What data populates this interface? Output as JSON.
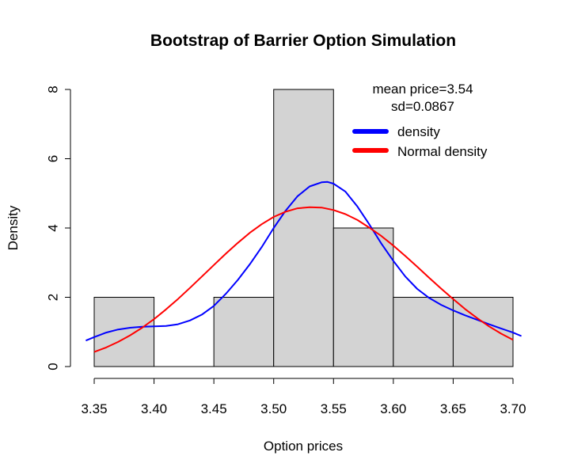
{
  "chart_data": {
    "type": "histogram",
    "title": "Bootstrap of Barrier Option Simulation",
    "xlabel": "Option prices",
    "ylabel": "Density",
    "xlim": [
      3.35,
      3.7
    ],
    "ylim": [
      0,
      8
    ],
    "x_ticks": [
      "3.35",
      "3.40",
      "3.45",
      "3.50",
      "3.55",
      "3.60",
      "3.65",
      "3.70"
    ],
    "y_ticks": [
      "0",
      "2",
      "4",
      "6",
      "8"
    ],
    "bins": [
      {
        "from": 3.35,
        "to": 3.4,
        "density": 2
      },
      {
        "from": 3.4,
        "to": 3.45,
        "density": 0
      },
      {
        "from": 3.45,
        "to": 3.5,
        "density": 2
      },
      {
        "from": 3.5,
        "to": 3.55,
        "density": 8
      },
      {
        "from": 3.55,
        "to": 3.6,
        "density": 4
      },
      {
        "from": 3.6,
        "to": 3.65,
        "density": 2
      },
      {
        "from": 3.65,
        "to": 3.7,
        "density": 2
      }
    ],
    "bar_color": "#d3d3d3",
    "annotations": [
      "mean price=3.54",
      "sd=0.0867"
    ],
    "series": [
      {
        "name": "density",
        "color": "#0000ff",
        "x": [
          3.343,
          3.35,
          3.36,
          3.37,
          3.38,
          3.39,
          3.4,
          3.41,
          3.42,
          3.43,
          3.44,
          3.45,
          3.46,
          3.47,
          3.48,
          3.49,
          3.5,
          3.51,
          3.52,
          3.53,
          3.54,
          3.545,
          3.55,
          3.56,
          3.57,
          3.58,
          3.59,
          3.6,
          3.61,
          3.62,
          3.63,
          3.64,
          3.65,
          3.66,
          3.67,
          3.68,
          3.69,
          3.7,
          3.707
        ],
        "y": [
          0.75,
          0.85,
          0.98,
          1.07,
          1.12,
          1.15,
          1.16,
          1.17,
          1.22,
          1.33,
          1.5,
          1.75,
          2.1,
          2.5,
          2.95,
          3.45,
          4.0,
          4.5,
          4.92,
          5.2,
          5.32,
          5.33,
          5.28,
          5.05,
          4.62,
          4.1,
          3.55,
          3.05,
          2.6,
          2.24,
          1.98,
          1.78,
          1.62,
          1.48,
          1.35,
          1.22,
          1.1,
          0.98,
          0.88
        ]
      },
      {
        "name": "Normal density",
        "color": "#ff0000",
        "x": [
          3.35,
          3.36,
          3.37,
          3.38,
          3.39,
          3.4,
          3.41,
          3.42,
          3.43,
          3.44,
          3.45,
          3.46,
          3.47,
          3.48,
          3.49,
          3.5,
          3.51,
          3.52,
          3.53,
          3.54,
          3.55,
          3.56,
          3.57,
          3.58,
          3.59,
          3.6,
          3.61,
          3.62,
          3.63,
          3.64,
          3.65,
          3.66,
          3.67,
          3.68,
          3.69,
          3.7
        ],
        "y": [
          0.42,
          0.55,
          0.71,
          0.9,
          1.12,
          1.37,
          1.65,
          1.95,
          2.27,
          2.6,
          2.93,
          3.26,
          3.57,
          3.86,
          4.11,
          4.32,
          4.47,
          4.57,
          4.6,
          4.59,
          4.52,
          4.4,
          4.23,
          4.01,
          3.77,
          3.49,
          3.19,
          2.88,
          2.56,
          2.25,
          1.95,
          1.66,
          1.4,
          1.16,
          0.95,
          0.77
        ]
      }
    ],
    "legend": {
      "position": "top-right",
      "items": [
        {
          "label": "density",
          "color": "#0000ff"
        },
        {
          "label": "Normal density",
          "color": "#ff0000"
        }
      ]
    },
    "grid": false
  }
}
